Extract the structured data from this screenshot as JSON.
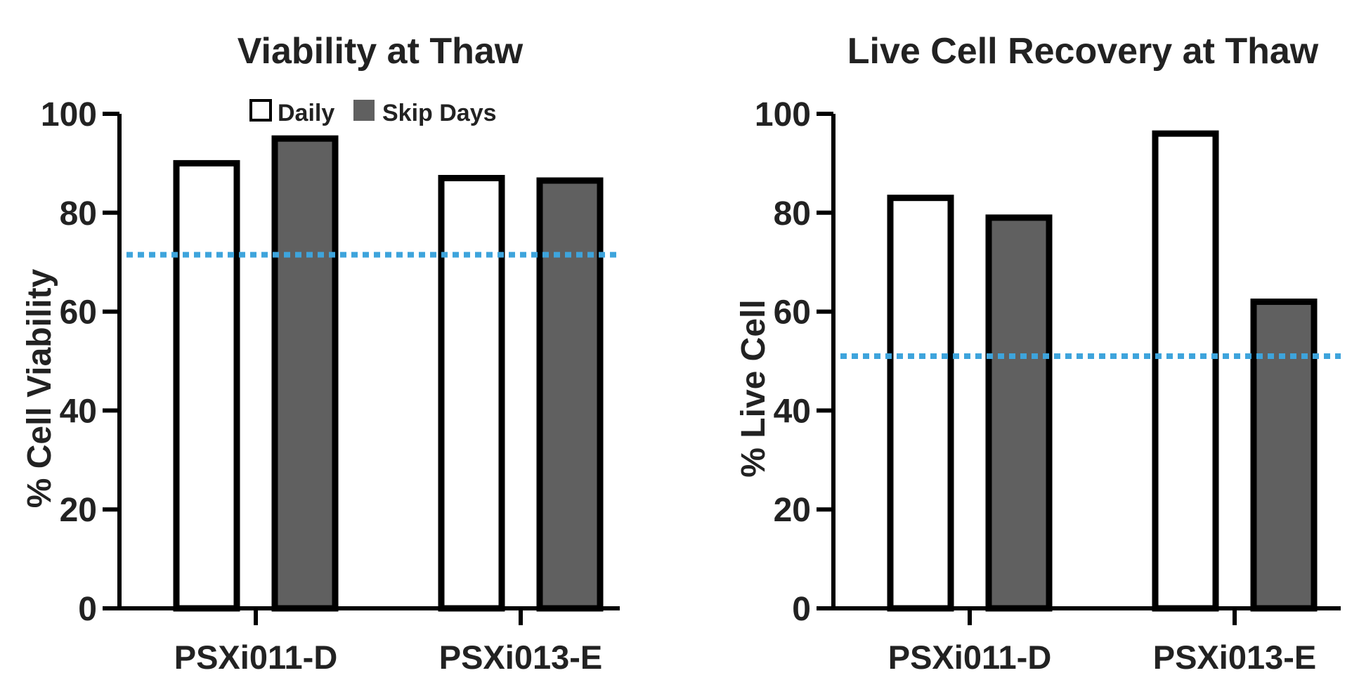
{
  "chart_data": [
    {
      "type": "bar",
      "title": "Viability at Thaw",
      "xlabel": "",
      "ylabel": "% Cell Viability",
      "ylim": [
        0,
        100
      ],
      "yticks": [
        "0",
        "20",
        "40",
        "60",
        "80",
        "100"
      ],
      "categories": [
        "PSXi011-D",
        "PSXi013-E"
      ],
      "series": [
        {
          "name": "Daily",
          "values": [
            90,
            87
          ]
        },
        {
          "name": "Skip Days",
          "values": [
            95,
            86.5
          ]
        }
      ],
      "reference_line": {
        "value": 71.5,
        "style": "dotted",
        "color": "#3ea4dc"
      },
      "legend": {
        "placement": "top"
      }
    },
    {
      "type": "bar",
      "title": "Live Cell Recovery at Thaw",
      "xlabel": "",
      "ylabel": "% Live Cell",
      "ylim": [
        0,
        100
      ],
      "yticks": [
        "0",
        "20",
        "40",
        "60",
        "80",
        "100"
      ],
      "categories": [
        "PSXi011-D",
        "PSXi013-E"
      ],
      "series": [
        {
          "name": "Daily",
          "values": [
            83,
            96
          ]
        },
        {
          "name": "Skip Days",
          "values": [
            79,
            62
          ]
        }
      ],
      "reference_line": {
        "value": 51,
        "style": "dotted",
        "color": "#3ea4dc"
      }
    }
  ],
  "colors": {
    "daily_fill": "#ffffff",
    "skip_fill": "#606060",
    "bar_stroke": "#000000",
    "reference": "#3ea4dc",
    "axis": "#000000"
  }
}
